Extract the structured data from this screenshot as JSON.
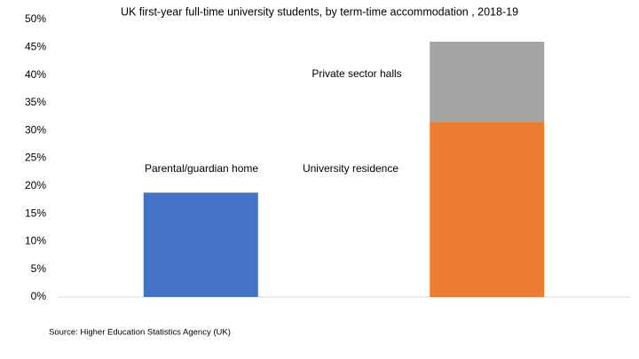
{
  "chart_data": {
    "type": "stacked_bar",
    "title": "UK first-year full-time university students, by term-time accommodation , 2018-19",
    "source": "Source: Higher Education Statistics Agency (UK)",
    "categories": [
      null,
      null
    ],
    "series": [
      {
        "name": "Parental/guardian home",
        "color": "#4472c4",
        "values": [
          18.8,
          null
        ]
      },
      {
        "name": "University residence",
        "color": "#ed7d31",
        "values": [
          null,
          31.6
        ]
      },
      {
        "name": "Private sector halls",
        "color": "#a5a5a5",
        "values": [
          null,
          14.4
        ]
      }
    ],
    "ylim": [
      0,
      50
    ],
    "yticks": [
      {
        "value": 0,
        "label": "0%"
      },
      {
        "value": 5,
        "label": "5%"
      },
      {
        "value": 10,
        "label": "10%"
      },
      {
        "value": 15,
        "label": "15%"
      },
      {
        "value": 20,
        "label": "20%"
      },
      {
        "value": 25,
        "label": "25%"
      },
      {
        "value": 30,
        "label": "30%"
      },
      {
        "value": 35,
        "label": "35%"
      },
      {
        "value": 40,
        "label": "40%"
      },
      {
        "value": 45,
        "label": "45%"
      },
      {
        "value": 50,
        "label": "50%"
      }
    ],
    "grid": false
  }
}
